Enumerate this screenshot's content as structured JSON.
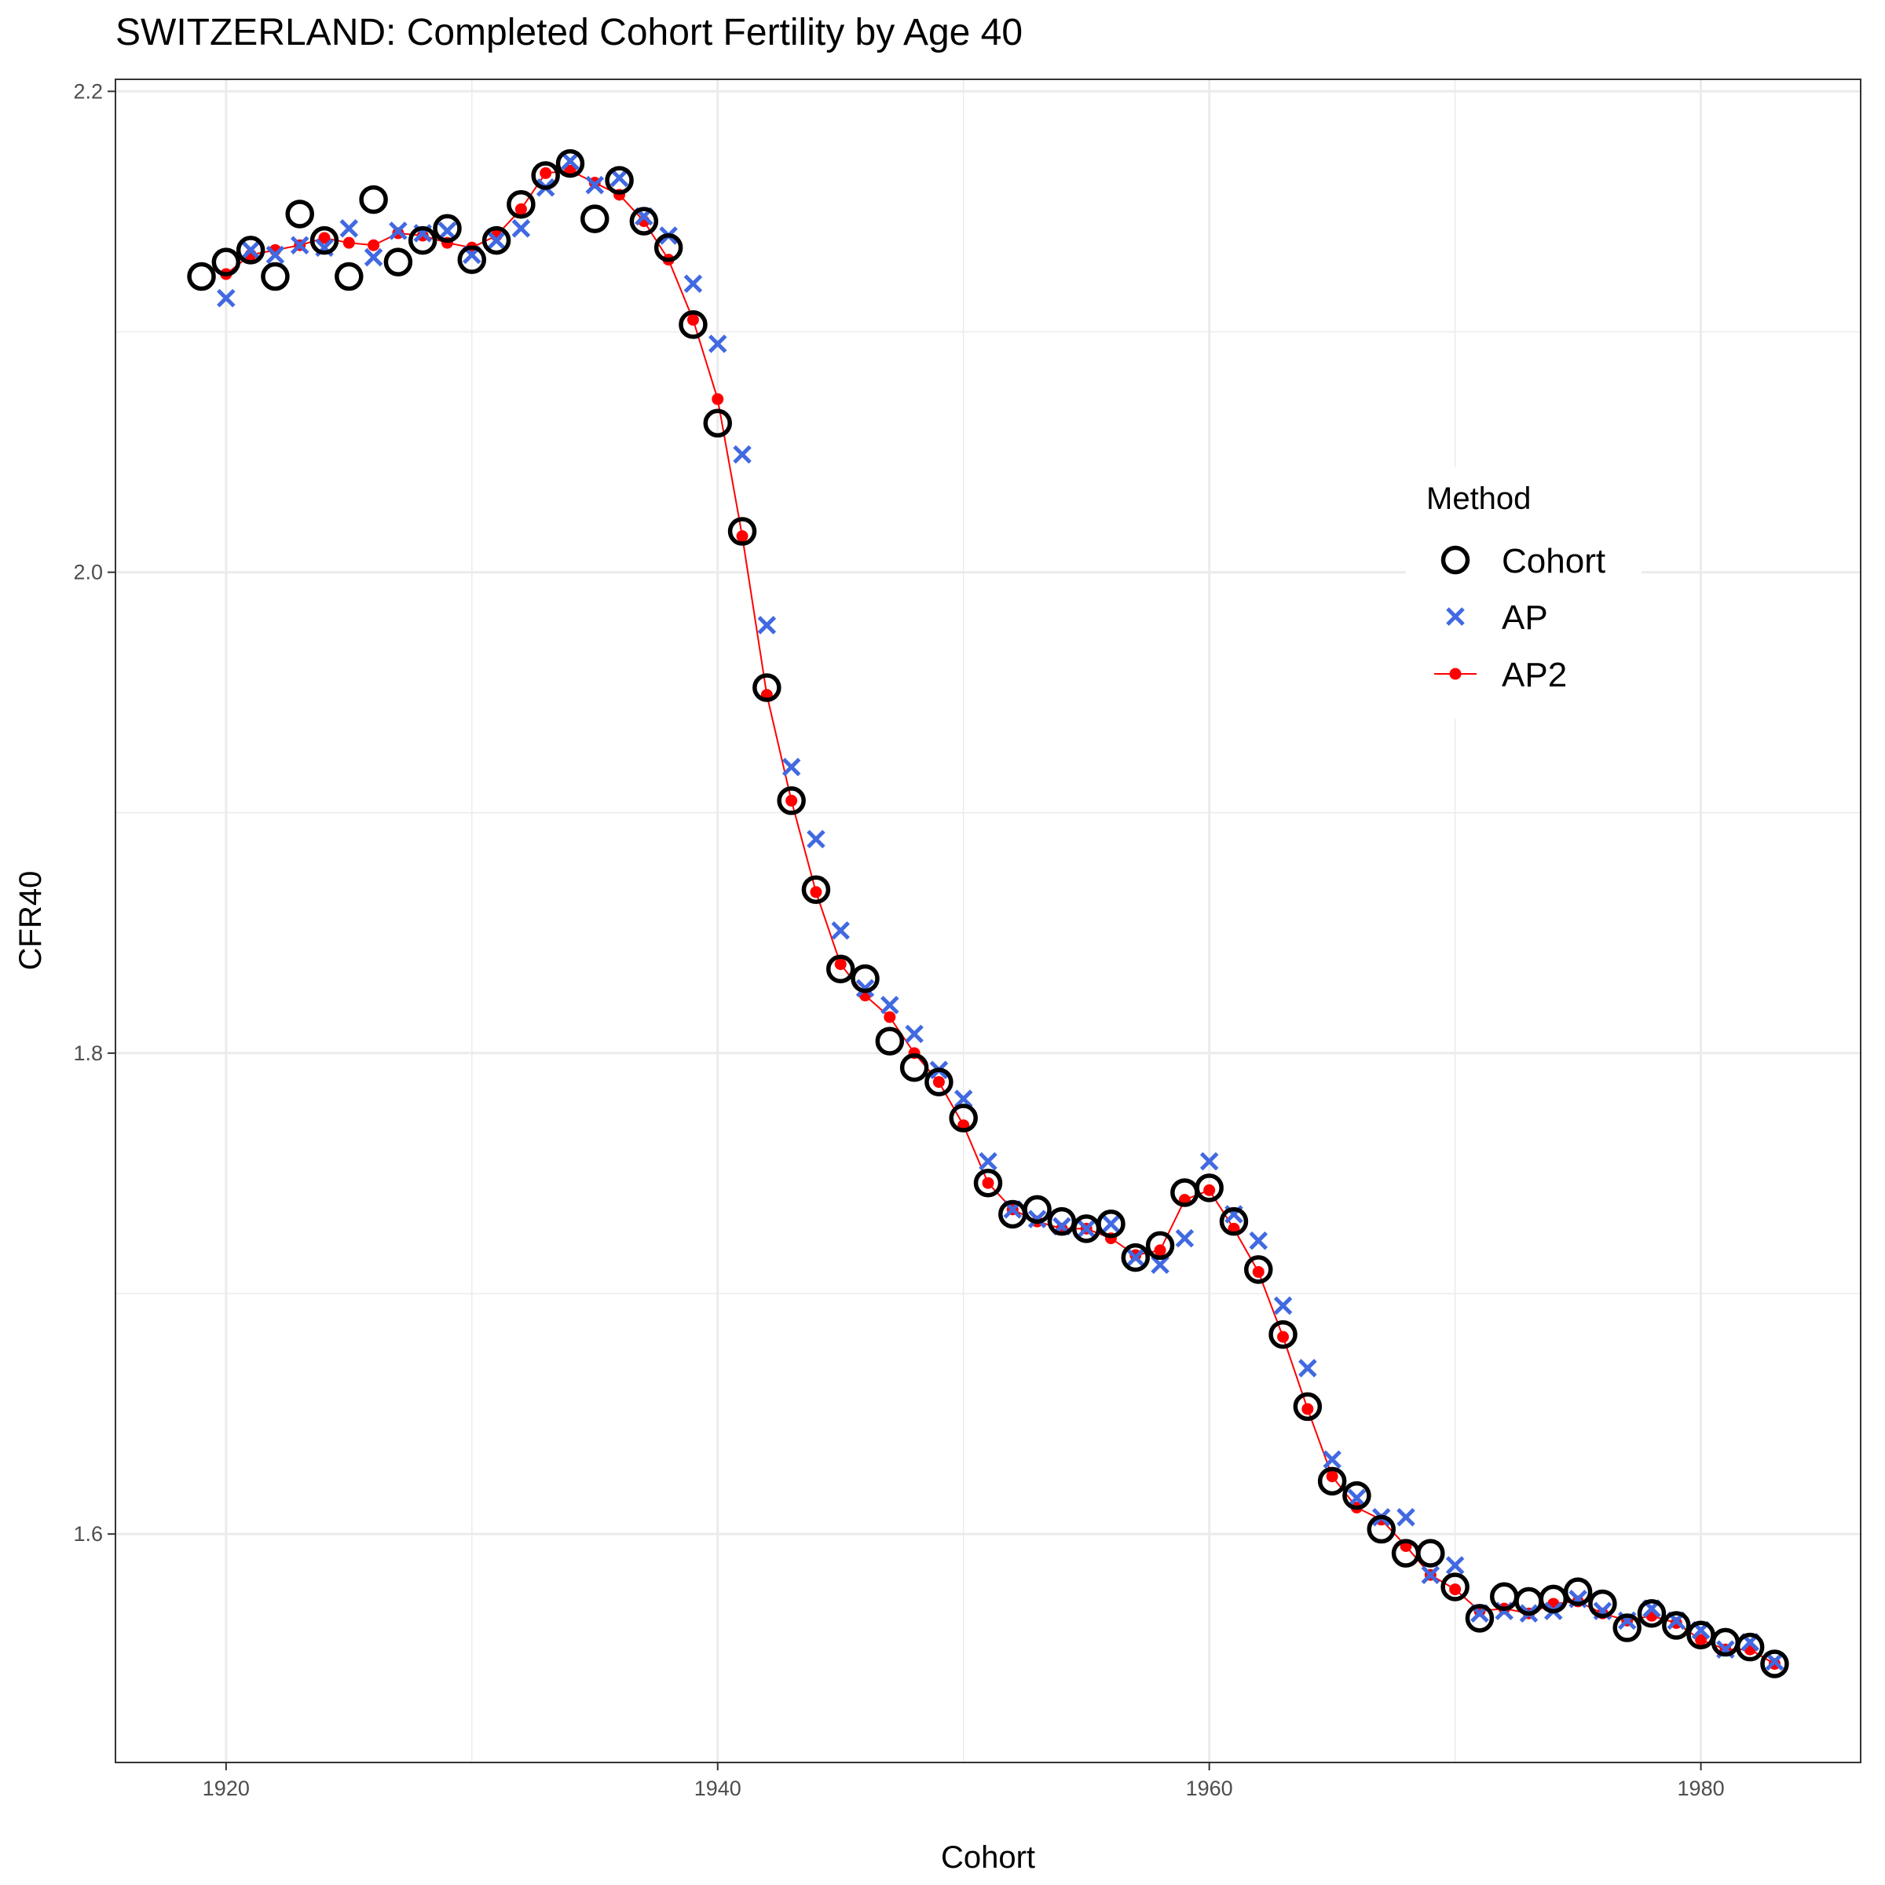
{
  "chart_data": {
    "type": "scatter",
    "title": "SWITZERLAND: Completed Cohort Fertility by Age 40",
    "xlabel": "Cohort",
    "ylabel": "CFR40",
    "xlim": [
      1915.5,
      1986.5
    ],
    "ylim": [
      1.505,
      2.205
    ],
    "x_ticks": [
      1920,
      1940,
      1960,
      1980
    ],
    "y_ticks": [
      1.6,
      1.8,
      2.0,
      2.2
    ],
    "x_tick_labels": [
      "1920",
      "1940",
      "1960",
      "1980"
    ],
    "y_tick_labels": [
      "1.6",
      "1.8",
      "2.0",
      "2.2"
    ],
    "grid": true,
    "legend": {
      "title": "Method",
      "position": "right"
    },
    "series": [
      {
        "name": "Cohort",
        "marker": "open-circle",
        "color": "#000000",
        "x": [
          1919,
          1920,
          1921,
          1922,
          1923,
          1924,
          1925,
          1926,
          1927,
          1928,
          1929,
          1930,
          1931,
          1932,
          1933,
          1934,
          1935,
          1936,
          1937,
          1938,
          1939,
          1940,
          1941,
          1942,
          1943,
          1944,
          1945,
          1946,
          1947,
          1948,
          1949,
          1950,
          1951,
          1952,
          1953,
          1954,
          1955,
          1956,
          1957,
          1958,
          1959,
          1960,
          1961,
          1962,
          1963,
          1964,
          1965,
          1966,
          1967,
          1968,
          1969,
          1970,
          1971,
          1972,
          1973,
          1974,
          1975,
          1976,
          1977,
          1978,
          1979,
          1980,
          1981,
          1982,
          1983
        ],
        "y": [
          2.123,
          2.129,
          2.134,
          2.123,
          2.149,
          2.138,
          2.123,
          2.155,
          2.129,
          2.138,
          2.143,
          2.13,
          2.138,
          2.153,
          2.165,
          2.17,
          2.147,
          2.163,
          2.146,
          2.135,
          2.103,
          2.062,
          2.017,
          1.952,
          1.905,
          1.868,
          1.835,
          1.831,
          1.805,
          1.794,
          1.788,
          1.773,
          1.746,
          1.733,
          1.735,
          1.73,
          1.727,
          1.729,
          1.715,
          1.72,
          1.742,
          1.744,
          1.73,
          1.71,
          1.683,
          1.653,
          1.622,
          1.616,
          1.602,
          1.592,
          1.592,
          1.578,
          1.565,
          1.574,
          1.572,
          1.573,
          1.576,
          1.571,
          1.561,
          1.567,
          1.562,
          1.558,
          1.555,
          1.553,
          1.546
        ]
      },
      {
        "name": "AP",
        "marker": "x",
        "color": "#4169e1",
        "x": [
          1920,
          1921,
          1922,
          1923,
          1924,
          1925,
          1926,
          1927,
          1928,
          1929,
          1930,
          1931,
          1932,
          1933,
          1934,
          1935,
          1936,
          1937,
          1938,
          1939,
          1940,
          1941,
          1942,
          1943,
          1944,
          1945,
          1946,
          1947,
          1948,
          1949,
          1950,
          1951,
          1952,
          1953,
          1954,
          1955,
          1956,
          1957,
          1958,
          1959,
          1960,
          1961,
          1962,
          1963,
          1964,
          1965,
          1966,
          1967,
          1968,
          1969,
          1970,
          1971,
          1972,
          1973,
          1974,
          1975,
          1976,
          1977,
          1978,
          1979,
          1980,
          1981,
          1982,
          1983
        ],
        "y": [
          2.114,
          2.134,
          2.132,
          2.136,
          2.135,
          2.143,
          2.131,
          2.142,
          2.141,
          2.142,
          2.132,
          2.138,
          2.143,
          2.16,
          2.171,
          2.161,
          2.164,
          2.148,
          2.14,
          2.12,
          2.095,
          2.049,
          1.978,
          1.919,
          1.889,
          1.851,
          1.827,
          1.82,
          1.808,
          1.793,
          1.781,
          1.755,
          1.735,
          1.731,
          1.728,
          1.727,
          1.729,
          1.715,
          1.712,
          1.723,
          1.755,
          1.733,
          1.722,
          1.695,
          1.669,
          1.631,
          1.615,
          1.607,
          1.607,
          1.583,
          1.587,
          1.567,
          1.568,
          1.567,
          1.568,
          1.573,
          1.568,
          1.564,
          1.569,
          1.564,
          1.56,
          1.552,
          1.555,
          1.547
        ]
      },
      {
        "name": "AP2",
        "marker": "dot-line",
        "color": "#ff0000",
        "x": [
          1920,
          1921,
          1922,
          1923,
          1924,
          1925,
          1926,
          1927,
          1928,
          1929,
          1930,
          1931,
          1932,
          1933,
          1934,
          1935,
          1936,
          1937,
          1938,
          1939,
          1940,
          1941,
          1942,
          1943,
          1944,
          1945,
          1946,
          1947,
          1948,
          1949,
          1950,
          1951,
          1952,
          1953,
          1954,
          1955,
          1956,
          1957,
          1958,
          1959,
          1960,
          1961,
          1962,
          1963,
          1964,
          1965,
          1966,
          1967,
          1968,
          1969,
          1970,
          1971,
          1972,
          1973,
          1974,
          1975,
          1976,
          1977,
          1978,
          1979,
          1980,
          1981,
          1982,
          1983
        ],
        "y": [
          2.124,
          2.132,
          2.134,
          2.136,
          2.139,
          2.137,
          2.136,
          2.141,
          2.14,
          2.137,
          2.135,
          2.14,
          2.151,
          2.166,
          2.167,
          2.162,
          2.157,
          2.146,
          2.13,
          2.105,
          2.072,
          2.015,
          1.949,
          1.905,
          1.867,
          1.837,
          1.824,
          1.815,
          1.8,
          1.788,
          1.77,
          1.746,
          1.735,
          1.73,
          1.727,
          1.727,
          1.723,
          1.716,
          1.718,
          1.739,
          1.743,
          1.727,
          1.709,
          1.682,
          1.652,
          1.624,
          1.611,
          1.606,
          1.595,
          1.583,
          1.577,
          1.568,
          1.569,
          1.567,
          1.571,
          1.572,
          1.567,
          1.564,
          1.566,
          1.563,
          1.556,
          1.552,
          1.552,
          1.546
        ]
      }
    ]
  }
}
